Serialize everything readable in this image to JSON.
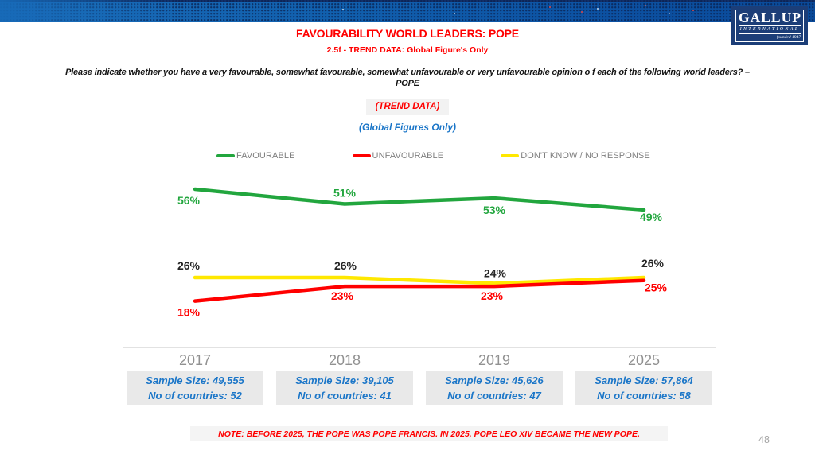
{
  "logo": {
    "name": "GALLUP",
    "subtitle": "INTERNATIONAL",
    "founded": "founded 1947"
  },
  "header": {
    "title": "FAVOURABILITY WORLD LEADERS: POPE",
    "subtitle": "2.5f - TREND DATA: Global Figure's Only"
  },
  "question": {
    "line1": "Please indicate whether you have a very favourable, somewhat favourable, somewhat unfavourable or very unfavourable opinion o f each of the following world leaders? –",
    "line2": "POPE"
  },
  "badges": {
    "trend_data": "(TREND DATA)",
    "global_figures": "(Global Figures Only)"
  },
  "legend": [
    {
      "label": "FAVOURABLE",
      "color": "#22a63e"
    },
    {
      "label": "UNFAVOURABLE",
      "color": "#ff0000"
    },
    {
      "label": "DON'T KNOW / NO RESPONSE",
      "color": "#ffe800"
    }
  ],
  "chart_data": {
    "type": "line",
    "categories": [
      "2017",
      "2018",
      "2019",
      "2025"
    ],
    "series": [
      {
        "name": "FAVOURABLE",
        "color": "#22a63e",
        "label_color": "#22a63e",
        "values": [
          56,
          51,
          53,
          49
        ],
        "labels": [
          "56%",
          "51%",
          "53%",
          "49%"
        ]
      },
      {
        "name": "UNFAVOURABLE",
        "color": "#ff0000",
        "label_color": "#ff0000",
        "values": [
          18,
          23,
          23,
          25
        ],
        "labels": [
          "18%",
          "23%",
          "23%",
          "25%"
        ]
      },
      {
        "name": "DON'T KNOW / NO RESPONSE",
        "color": "#ffe800",
        "label_color": "#262626",
        "values": [
          26,
          26,
          24,
          26
        ],
        "labels": [
          "26%",
          "26%",
          "24%",
          "26%"
        ]
      }
    ],
    "ylim": [
      0,
      100
    ],
    "grid": false,
    "legend_position": "top",
    "xlabel": "",
    "ylabel": ""
  },
  "samples": [
    {
      "year": "2017",
      "sample_size": "Sample Size: 49,555",
      "countries": "No of countries:  52"
    },
    {
      "year": "2018",
      "sample_size": "Sample Size: 39,105",
      "countries": "No of countries: 41"
    },
    {
      "year": "2019",
      "sample_size": "Sample Size: 45,626",
      "countries": "No of countries: 47"
    },
    {
      "year": "2025",
      "sample_size": "Sample Size: 57,864",
      "countries": "No of countries: 58"
    }
  ],
  "note": "NOTE: BEFORE 2025, THE POPE WAS POPE FRANCIS. IN 2025, POPE LEO XIV BECAME THE NEW POPE.",
  "page_number": "48"
}
